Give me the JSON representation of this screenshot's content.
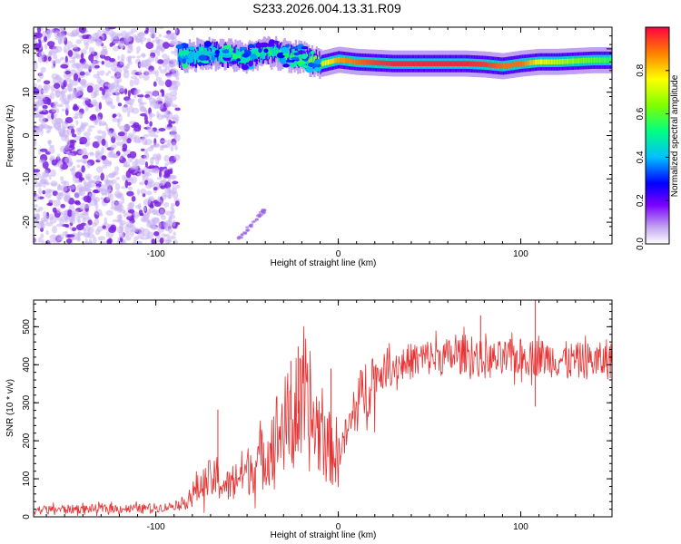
{
  "title": "S233.2026.004.13.31.R09",
  "colors": {
    "snr_line": "#e63232",
    "noise": "#7a22e0",
    "axis": "#000000"
  },
  "chart_data": [
    {
      "type": "heatmap",
      "title": "S233.2026.004.13.31.R09",
      "xlabel": "Height of straight line (km)",
      "ylabel": "Frequency (Hz)",
      "xlim": [
        -167,
        150
      ],
      "ylim": [
        -25,
        25
      ],
      "xticks": [
        -100,
        0,
        100
      ],
      "xtick_labels": [
        "-100",
        "0",
        "100"
      ],
      "yticks": [
        -20,
        -10,
        0,
        10,
        20
      ],
      "ytick_labels": [
        "-20",
        "-10",
        "0",
        "10",
        "20"
      ],
      "colorbar": {
        "label": "Normalized spectral amplitude",
        "range": [
          0,
          1
        ],
        "ticks": [
          0.0,
          0.2,
          0.4,
          0.6,
          0.8
        ],
        "tick_labels": [
          "0.0",
          "0.2",
          "0.4",
          "0.6",
          "0.8"
        ]
      },
      "ridge": {
        "x": [
          -88,
          -80,
          -70,
          -60,
          -50,
          -40,
          -30,
          -20,
          -10,
          0,
          10,
          20,
          30,
          40,
          50,
          60,
          70,
          80,
          90,
          100,
          110,
          120,
          130,
          140,
          150
        ],
        "y": [
          18.0,
          18.5,
          19.0,
          18.5,
          18.0,
          19.5,
          18.5,
          18.0,
          16.5,
          17.5,
          17.0,
          16.8,
          16.6,
          16.6,
          16.6,
          16.6,
          16.6,
          16.4,
          16.0,
          16.6,
          17.0,
          17.0,
          17.2,
          17.4,
          17.4
        ],
        "amplitude": [
          0.35,
          0.4,
          0.45,
          0.5,
          0.5,
          0.55,
          0.55,
          0.6,
          0.7,
          0.85,
          0.9,
          0.95,
          0.97,
          0.97,
          0.97,
          0.97,
          0.97,
          0.95,
          0.9,
          0.9,
          0.75,
          0.7,
          0.65,
          0.6,
          0.55
        ]
      },
      "grid": false
    },
    {
      "type": "line",
      "xlabel": "Height of straight line (km)",
      "ylabel": "SNR (10 * v/v)",
      "xlim": [
        -167,
        150
      ],
      "ylim": [
        0,
        570
      ],
      "xticks": [
        -100,
        0,
        100
      ],
      "xtick_labels": [
        "-100",
        "0",
        "100"
      ],
      "yticks": [
        0,
        100,
        200,
        300,
        400,
        500
      ],
      "ytick_labels": [
        "0",
        "100",
        "200",
        "300",
        "400",
        "500"
      ],
      "series": [
        {
          "color": "#e63232",
          "x": [
            -167,
            -150,
            -130,
            -110,
            -95,
            -85,
            -80,
            -75,
            -70,
            -65,
            -60,
            -55,
            -50,
            -45,
            -40,
            -35,
            -30,
            -25,
            -20,
            -15,
            -10,
            -5,
            0,
            5,
            10,
            15,
            20,
            30,
            40,
            50,
            60,
            70,
            80,
            90,
            100,
            110,
            120,
            130,
            140,
            150
          ],
          "y": [
            18,
            20,
            21,
            22,
            25,
            35,
            60,
            80,
            100,
            90,
            80,
            110,
            120,
            140,
            160,
            210,
            240,
            260,
            280,
            250,
            230,
            180,
            170,
            220,
            290,
            340,
            370,
            395,
            410,
            420,
            420,
            430,
            410,
            415,
            420,
            420,
            415,
            410,
            410,
            410
          ],
          "spikes": [
            {
              "x": -66,
              "y": 282
            },
            {
              "x": -22,
              "y": 448
            },
            {
              "x": -26,
              "y": 410
            },
            {
              "x": -4,
              "y": 390
            },
            {
              "x": 78,
              "y": 530
            },
            {
              "x": 108,
              "y": 575
            },
            {
              "x": 108,
              "y": 290
            }
          ]
        }
      ],
      "grid": false
    }
  ]
}
